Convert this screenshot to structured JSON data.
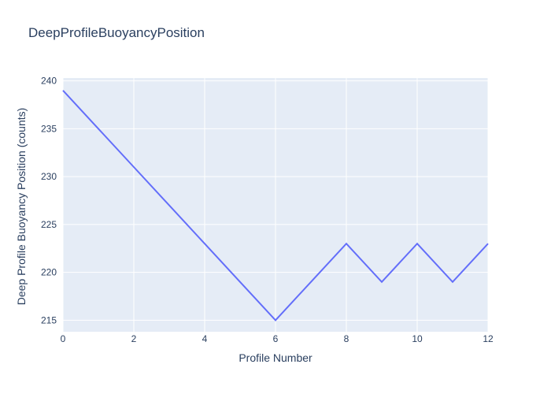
{
  "chart_data": {
    "type": "line",
    "title": "DeepProfileBuoyancyPosition",
    "xlabel": "Profile Number",
    "ylabel": "Deep Profile Buoyancy Position (counts)",
    "x": [
      0,
      1,
      2,
      3,
      4,
      5,
      6,
      7,
      8,
      9,
      10,
      11,
      12
    ],
    "y": [
      239,
      235,
      231,
      227,
      223,
      219,
      215,
      219,
      223,
      219,
      223,
      219,
      223
    ],
    "xlim": [
      0,
      12
    ],
    "ylim": [
      213.8,
      240.3
    ],
    "x_ticks": [
      0,
      2,
      4,
      6,
      8,
      10,
      12
    ],
    "y_ticks": [
      215,
      220,
      225,
      230,
      235,
      240
    ],
    "grid": true,
    "legend_position": "none",
    "series_count": 1
  },
  "colors": {
    "line": "#636efa",
    "plot_background": "#e5ecf6",
    "grid": "#ffffff",
    "text": "#2a3f5f",
    "paper_background": "#ffffff"
  }
}
